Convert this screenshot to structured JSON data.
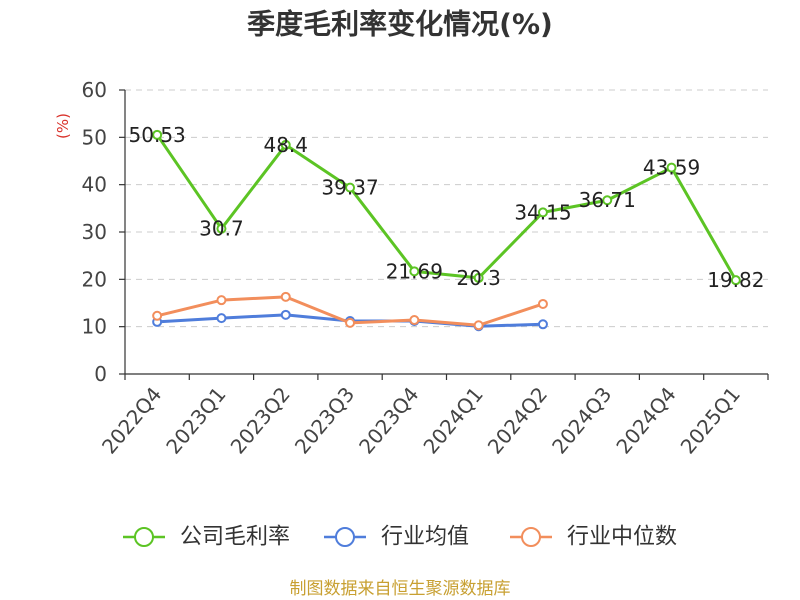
{
  "chart_data": {
    "type": "line",
    "title": "季度毛利率变化情况(%)",
    "xlabel": "",
    "ylabel": "(%)",
    "ylim": [
      0,
      60
    ],
    "yticks": [
      0,
      10,
      20,
      30,
      40,
      50,
      60
    ],
    "grid": true,
    "legend": "bottom",
    "categories": [
      "2022Q4",
      "2023Q1",
      "2023Q2",
      "2023Q3",
      "2023Q4",
      "2024Q1",
      "2024Q2",
      "2024Q3",
      "2024Q4",
      "2025Q1"
    ],
    "series": [
      {
        "name": "公司毛利率",
        "color": "#5cc424",
        "show_labels": true,
        "values": [
          50.53,
          30.7,
          48.4,
          39.37,
          21.69,
          20.3,
          34.15,
          36.71,
          43.59,
          19.82
        ]
      },
      {
        "name": "行业均值",
        "color": "#4f7ddb",
        "show_labels": false,
        "values": [
          11,
          11.8,
          12.5,
          11.2,
          11.2,
          10.1,
          10.5,
          null,
          null,
          null
        ]
      },
      {
        "name": "行业中位数",
        "color": "#f28e5c",
        "show_labels": false,
        "values": [
          12.3,
          15.6,
          16.3,
          10.8,
          11.4,
          10.3,
          14.8,
          null,
          null,
          null
        ]
      }
    ]
  },
  "footer": {
    "source": "制图数据来自恒生聚源数据库",
    "color": "#c8a032"
  }
}
